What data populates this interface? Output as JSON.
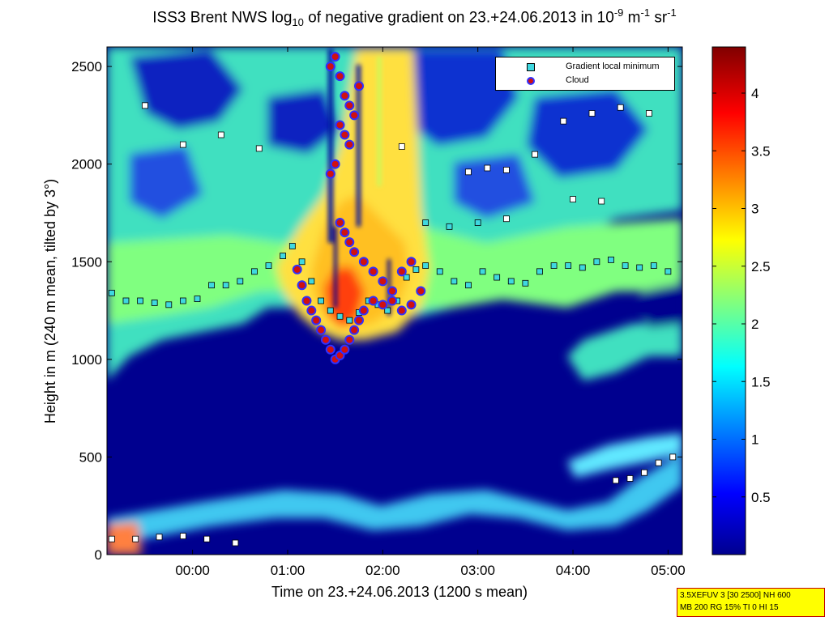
{
  "chart_data": {
    "type": "heatmap",
    "title_parts": {
      "pre": "ISS3 Brent NWS log",
      "sub": "10",
      "mid": " of negative gradient on 23.+24.06.2013 in 10",
      "sup1": "-9",
      "mid2": " m",
      "sup2": "-1",
      "mid3": " sr",
      "sup3": "-1"
    },
    "xlabel": "Time on 23.+24.06.2013 (1200 s mean)",
    "ylabel": "Height in m (240 m mean, tilted by 3°)",
    "xlim_hours": [
      -0.9,
      5.15
    ],
    "ylim": [
      0,
      2600
    ],
    "x_ticks": [
      {
        "label": "00:00",
        "value": 0
      },
      {
        "label": "01:00",
        "value": 1
      },
      {
        "label": "02:00",
        "value": 2
      },
      {
        "label": "03:00",
        "value": 3
      },
      {
        "label": "04:00",
        "value": 4
      },
      {
        "label": "05:00",
        "value": 5
      }
    ],
    "y_ticks": [
      0,
      500,
      1000,
      1500,
      2000,
      2500
    ],
    "colorbar": {
      "range": [
        0,
        4.4
      ],
      "ticks": [
        0.5,
        1,
        1.5,
        2,
        2.5,
        3,
        3.5,
        4
      ],
      "colormap": "jet"
    },
    "legend": {
      "position": "top-right",
      "entries": [
        {
          "name": "Gradient local minimum",
          "marker": "square",
          "color": "#3fd8e0"
        },
        {
          "name": "Cloud",
          "marker": "circle",
          "color": "#d01010",
          "edge": "#3030ff"
        }
      ]
    },
    "series": [
      {
        "name": "Gradient local minimum",
        "x": [
          -0.85,
          -0.7,
          -0.55,
          -0.4,
          -0.25,
          -0.1,
          0.05,
          0.2,
          0.35,
          0.5,
          0.65,
          0.8,
          0.95,
          1.05,
          1.15,
          1.25,
          1.35,
          1.45,
          1.55,
          1.65,
          1.75,
          1.85,
          1.95,
          2.05,
          2.15,
          2.25,
          2.35,
          2.45,
          2.6,
          2.75,
          2.9,
          3.05,
          3.2,
          3.35,
          3.5,
          3.65,
          3.8,
          3.95,
          4.1,
          4.25,
          4.4,
          4.55,
          4.7,
          4.85,
          5.0,
          -0.85,
          -0.6,
          -0.35,
          -0.1,
          0.15,
          0.45,
          4.45,
          4.6,
          4.75,
          4.9,
          5.05,
          -0.5,
          -0.1,
          0.3,
          0.7,
          2.9,
          3.1,
          3.3,
          3.6,
          3.9,
          4.2,
          4.5,
          4.8,
          2.2,
          2.45,
          2.7,
          3.0,
          3.3,
          4.0,
          4.3
        ],
        "y": [
          1340,
          1300,
          1300,
          1290,
          1280,
          1300,
          1310,
          1380,
          1380,
          1400,
          1450,
          1480,
          1530,
          1580,
          1500,
          1400,
          1300,
          1250,
          1220,
          1200,
          1240,
          1300,
          1280,
          1250,
          1300,
          1420,
          1460,
          1480,
          1450,
          1400,
          1380,
          1450,
          1420,
          1400,
          1390,
          1450,
          1480,
          1480,
          1470,
          1500,
          1510,
          1480,
          1470,
          1480,
          1450,
          80,
          80,
          90,
          95,
          80,
          60,
          380,
          390,
          420,
          470,
          500,
          2300,
          2100,
          2150,
          2080,
          1960,
          1980,
          1970,
          2050,
          2220,
          2260,
          2290,
          2260,
          2090,
          1700,
          1680,
          1700,
          1720,
          1820,
          1810
        ],
        "color": "#3fd8e0"
      },
      {
        "name": "Cloud",
        "x": [
          1.1,
          1.15,
          1.2,
          1.25,
          1.3,
          1.35,
          1.4,
          1.45,
          1.5,
          1.55,
          1.6,
          1.65,
          1.7,
          1.75,
          1.8,
          1.9,
          2.0,
          2.1,
          2.2,
          2.3,
          2.4,
          1.45,
          1.5,
          1.55,
          1.6,
          1.65,
          1.7,
          1.75,
          1.55,
          1.6,
          1.65,
          1.45,
          1.5,
          1.55,
          1.6,
          1.65,
          1.7,
          1.8,
          1.9,
          2.0,
          2.1,
          2.2,
          2.3
        ],
        "y": [
          1460,
          1380,
          1300,
          1250,
          1200,
          1150,
          1100,
          1050,
          1000,
          1020,
          1050,
          1100,
          1150,
          1200,
          1250,
          1300,
          1280,
          1300,
          1250,
          1280,
          1350,
          2500,
          2550,
          2450,
          2350,
          2300,
          2250,
          2400,
          2200,
          2150,
          2100,
          1950,
          2000,
          1700,
          1650,
          1600,
          1550,
          1500,
          1450,
          1400,
          1350,
          1450,
          1500
        ],
        "color": "#d01010"
      }
    ]
  },
  "info_box": {
    "line1": "3.5XEFUV 3 [30 2500] NH 600",
    "line2": "MB 200 RG 15% TI 0 HI 15"
  }
}
